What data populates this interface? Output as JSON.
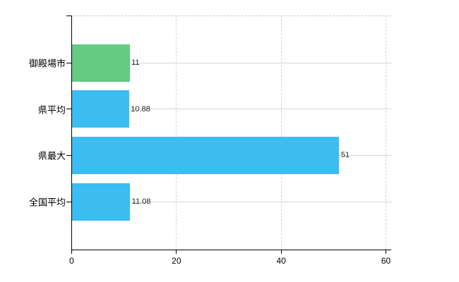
{
  "chart_data": {
    "type": "bar",
    "orientation": "horizontal",
    "title": "",
    "xlabel": "",
    "ylabel": "",
    "categories": [
      "御殿場市",
      "県平均",
      "県最大",
      "全国平均"
    ],
    "values": [
      11,
      10.88,
      51,
      11.08
    ],
    "value_labels": [
      "11",
      "10.88",
      "51",
      "11.08"
    ],
    "bar_colors": [
      "#63cb82",
      "#3bbdf2",
      "#3bbdf2",
      "#3bbdf2"
    ],
    "xlim": [
      0,
      60
    ],
    "xticks": [
      0,
      20,
      40,
      60
    ],
    "xtick_labels": [
      "0",
      "20",
      "40",
      "60"
    ],
    "grid": true,
    "legend": false
  },
  "colors": {
    "background": "#ffffff",
    "axis": "#000000",
    "gridline_horizontal": "#d4d4d4",
    "gridline_vertical": "#d2d2d2",
    "plot_top_border": "#c9c9c9",
    "bar_green": "#63cb82",
    "bar_blue": "#3bbdf2",
    "category_label_text": "#000000",
    "value_label_text": "#1f1f1f"
  }
}
